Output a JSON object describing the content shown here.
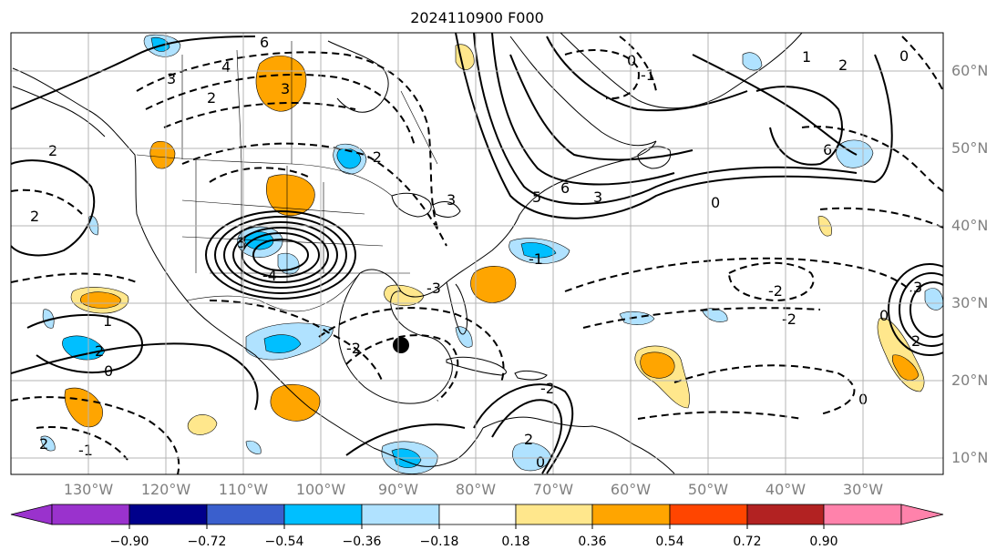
{
  "title": "2024110900 F000",
  "lat_labels": [
    "60°N",
    "50°N",
    "40°N",
    "30°N",
    "20°N",
    "10°N"
  ],
  "lon_labels": [
    "130°W",
    "120°W",
    "110°W",
    "100°W",
    "90°W",
    "80°W",
    "70°W",
    "60°W",
    "50°W",
    "40°W",
    "30°W"
  ],
  "colorbar": {
    "ticks": [
      "−0.90",
      "−0.72",
      "−0.54",
      "−0.36",
      "−0.18",
      "0.18",
      "0.36",
      "0.54",
      "0.72",
      "0.90"
    ],
    "colors": [
      "#9a32cd",
      "#00008b",
      "#3a5fcd",
      "#00bfff",
      "#b0e2ff",
      "#ffffff",
      "#ffe78c",
      "#ffa500",
      "#ff4500",
      "#b22222",
      "#ff82ab"
    ]
  },
  "contour_labels": [
    "3",
    "4",
    "6",
    "3",
    "2",
    "2",
    "2",
    "0",
    "-1",
    "-2",
    "3",
    "5",
    "6",
    "3",
    "0",
    "-2",
    "1",
    "2",
    "-3",
    "-2",
    "0",
    "-1",
    "2",
    "0",
    "-2",
    "3",
    "2",
    "0",
    "-1",
    "2",
    "-2",
    "0",
    "2",
    "1",
    "0",
    "3",
    "-4",
    "6"
  ],
  "colors": {
    "shade_blue_light": "#b0e2ff",
    "shade_blue": "#00bfff",
    "shade_yellow": "#ffe78c",
    "shade_orange": "#ffa500",
    "grid": "#b4b4b4",
    "tick_text": "#808080"
  },
  "marker": "filled-circle"
}
